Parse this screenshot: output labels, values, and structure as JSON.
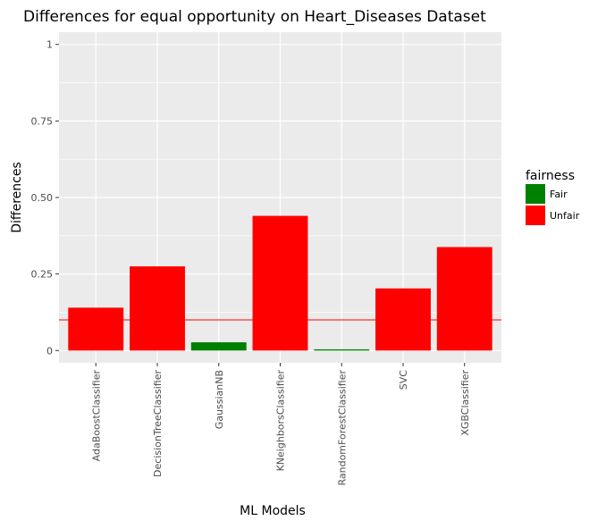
{
  "chart_data": {
    "type": "bar",
    "title": "Differences for equal opportunity on Heart_Diseases Dataset",
    "xlabel": "ML Models",
    "ylabel": "Differences",
    "categories": [
      "AdaBoostClassifier",
      "DecisionTreeClassifier",
      "GaussianNB",
      "KNeighborsClassifier",
      "RandomForestClassifier",
      "SVC",
      "XGBClassifier"
    ],
    "values": [
      0.14,
      0.275,
      0.027,
      0.44,
      0.004,
      0.203,
      0.338
    ],
    "fairness": [
      "Unfair",
      "Unfair",
      "Fair",
      "Unfair",
      "Fair",
      "Unfair",
      "Unfair"
    ],
    "ylim": [
      -0.04,
      1.04
    ],
    "yticks": [
      {
        "value": 0,
        "label": "0"
      },
      {
        "value": 0.25,
        "label": "0.25"
      },
      {
        "value": 0.5,
        "label": "0.50"
      },
      {
        "value": 0.75,
        "label": "0.75"
      },
      {
        "value": 1,
        "label": "1"
      }
    ],
    "threshold": {
      "value": 0.1,
      "color": "#ff0000"
    },
    "legend": {
      "title": "fairness",
      "placement": "right",
      "items": [
        {
          "label": "Fair",
          "color": "#008000"
        },
        {
          "label": "Unfair",
          "color": "#ff0000"
        }
      ]
    },
    "grid": true,
    "panel_background": "#ebebeb",
    "grid_color": "#ffffff"
  }
}
